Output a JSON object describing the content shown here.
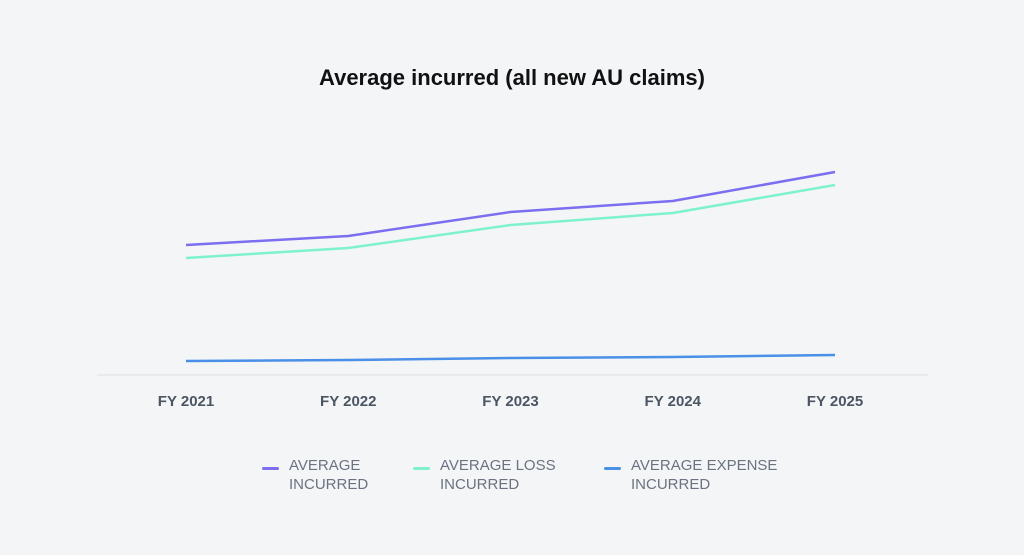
{
  "chart_data": {
    "type": "line",
    "title": "Average incurred (all new AU claims)",
    "categories": [
      "FY 2021",
      "FY 2022",
      "FY 2023",
      "FY 2024",
      "FY 2025"
    ],
    "ylim": [
      0,
      250
    ],
    "series": [
      {
        "name": "AVERAGE INCURRED",
        "color": "#7b6ef0",
        "values": [
          130,
          139,
          163,
          174,
          203
        ]
      },
      {
        "name": "AVERAGE LOSS INCURRED",
        "color": "#7ef2cf",
        "values": [
          117,
          127,
          150,
          162,
          190
        ]
      },
      {
        "name": "AVERAGE EXPENSE INCURRED",
        "color": "#4a8fe8",
        "values": [
          14,
          15,
          17,
          18,
          20
        ]
      }
    ]
  }
}
